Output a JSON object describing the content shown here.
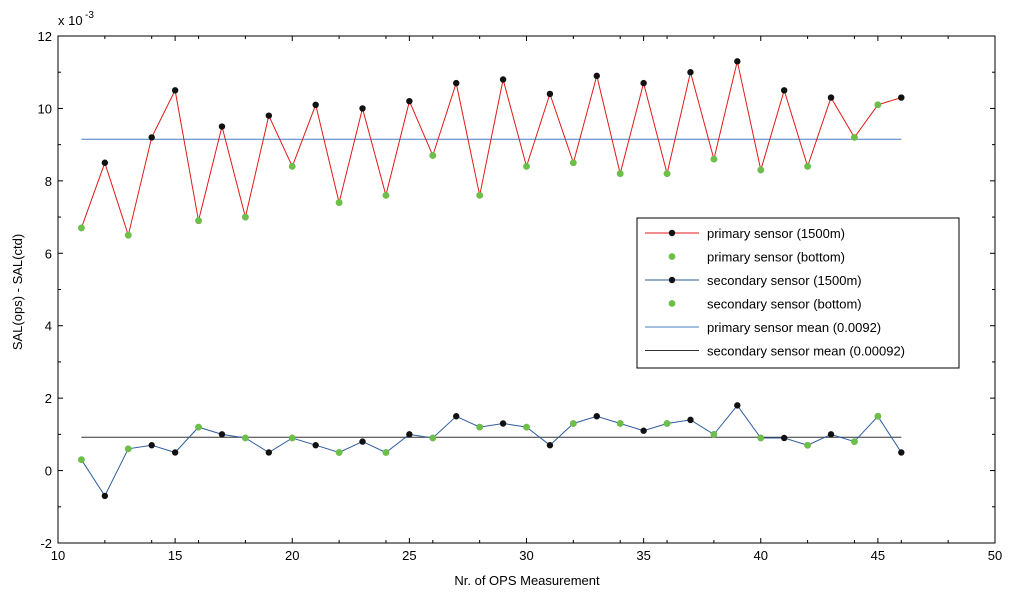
{
  "chart_data": {
    "type": "line",
    "xlabel": "Nr. of OPS Measurement",
    "ylabel": "SAL(ops) - SAL(ctd)",
    "y_multiplier_label": "x 10",
    "y_multiplier_exponent": "-3",
    "xlim": [
      10,
      50
    ],
    "ylim": [
      -2,
      12
    ],
    "x_ticks": [
      10,
      15,
      20,
      25,
      30,
      35,
      40,
      45,
      50
    ],
    "y_ticks": [
      -2,
      0,
      2,
      4,
      6,
      8,
      10,
      12
    ],
    "grid": false,
    "legend_position": "right",
    "series": [
      {
        "name": "primary sensor (1500m)",
        "color": "#e01a1a",
        "point_color": "#111111",
        "style": "line-with-markers",
        "x": [
          11,
          12,
          13,
          14,
          15,
          16,
          17,
          18,
          19,
          20,
          21,
          22,
          23,
          24,
          25,
          26,
          27,
          28,
          29,
          30,
          31,
          32,
          33,
          34,
          35,
          36,
          37,
          38,
          39,
          40,
          41,
          42,
          43,
          44,
          45,
          46
        ],
        "y": [
          6.7,
          8.5,
          6.5,
          9.2,
          10.5,
          6.9,
          9.5,
          7.0,
          9.8,
          8.4,
          10.1,
          7.4,
          10.0,
          7.6,
          10.2,
          8.7,
          10.7,
          7.6,
          10.8,
          8.4,
          10.4,
          8.5,
          10.9,
          8.2,
          10.7,
          8.2,
          11.0,
          8.6,
          11.3,
          8.3,
          10.5,
          8.4,
          10.3,
          9.2,
          10.1,
          10.3
        ]
      },
      {
        "name": "primary sensor (bottom)",
        "color": "#6cc04a",
        "style": "markers",
        "x": [
          11,
          13,
          16,
          18,
          20,
          22,
          24,
          26,
          28,
          30,
          32,
          34,
          36,
          38,
          40,
          42,
          44,
          45
        ],
        "y": [
          6.7,
          6.5,
          6.9,
          7.0,
          8.4,
          7.4,
          7.6,
          8.7,
          7.6,
          8.4,
          8.5,
          8.2,
          8.2,
          8.6,
          8.3,
          8.4,
          9.2,
          10.1
        ]
      },
      {
        "name": "secondary sensor (1500m)",
        "color": "#2e5c9e",
        "point_color": "#111111",
        "style": "line-with-markers",
        "x": [
          11,
          12,
          13,
          14,
          15,
          16,
          17,
          18,
          19,
          20,
          21,
          22,
          23,
          24,
          25,
          26,
          27,
          28,
          29,
          30,
          31,
          32,
          33,
          34,
          35,
          36,
          37,
          38,
          39,
          40,
          41,
          42,
          43,
          44,
          45,
          46
        ],
        "y": [
          0.3,
          -0.7,
          0.6,
          0.7,
          0.5,
          1.2,
          1.0,
          0.9,
          0.5,
          0.9,
          0.7,
          0.5,
          0.8,
          0.5,
          1.0,
          0.9,
          1.5,
          1.2,
          1.3,
          1.2,
          0.7,
          1.3,
          1.5,
          1.3,
          1.1,
          1.3,
          1.4,
          1.0,
          1.8,
          0.9,
          0.9,
          0.7,
          1.0,
          0.8,
          1.5,
          0.5
        ]
      },
      {
        "name": "secondary sensor (bottom)",
        "color": "#6cc04a",
        "style": "markers",
        "x": [
          11,
          13,
          16,
          18,
          20,
          22,
          24,
          26,
          28,
          30,
          32,
          34,
          36,
          38,
          40,
          42,
          44,
          45
        ],
        "y": [
          0.3,
          0.6,
          1.2,
          0.9,
          0.9,
          0.5,
          0.5,
          0.9,
          1.2,
          1.2,
          1.3,
          1.3,
          1.3,
          1.0,
          0.9,
          0.7,
          0.8,
          1.5
        ]
      },
      {
        "name": "primary sensor mean (0.0092)",
        "color": "#4a7fc1",
        "style": "hline",
        "x": [
          11,
          46
        ],
        "y": [
          9.15,
          9.15
        ]
      },
      {
        "name": "secondary sensor mean (0.00092)",
        "color": "#333333",
        "style": "hline",
        "x": [
          11,
          46
        ],
        "y": [
          0.92,
          0.92
        ]
      }
    ]
  }
}
